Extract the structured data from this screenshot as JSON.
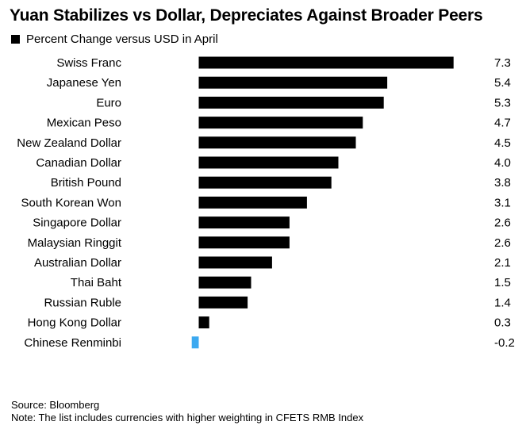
{
  "chart_data": {
    "type": "bar",
    "orientation": "horizontal",
    "title": "Yuan Stabilizes vs Dollar, Depreciates Against Broader Peers",
    "legend": {
      "label": "Percent Change versus USD in April",
      "placement": "top-left"
    },
    "categories": [
      "Swiss Franc",
      "Japanese Yen",
      "Euro",
      "Mexican Peso",
      "New Zealand Dollar",
      "Canadian Dollar",
      "British Pound",
      "South Korean Won",
      "Singapore Dollar",
      "Malaysian Ringgit",
      "Australian Dollar",
      "Thai Baht",
      "Russian Ruble",
      "Hong Kong Dollar",
      "Chinese Renminbi"
    ],
    "values": [
      7.3,
      5.4,
      5.3,
      4.7,
      4.5,
      4.0,
      3.8,
      3.1,
      2.6,
      2.6,
      2.1,
      1.5,
      1.4,
      0.3,
      -0.2
    ],
    "value_labels": [
      "7.3",
      "5.4",
      "5.3",
      "4.7",
      "4.5",
      "4.0",
      "3.8",
      "3.1",
      "2.6",
      "2.6",
      "2.1",
      "1.5",
      "1.4",
      "0.3",
      "-0.2"
    ],
    "highlight_category": "Chinese Renminbi",
    "xlim": [
      -0.3,
      7.3
    ],
    "grid": false,
    "colors": {
      "bar": "#000000",
      "highlight": "#3ca9f0",
      "text": "#000000"
    }
  },
  "footer": {
    "source": "Source: Bloomberg",
    "note": "Note: The list includes currencies with higher weighting in CFETS RMB Index"
  }
}
